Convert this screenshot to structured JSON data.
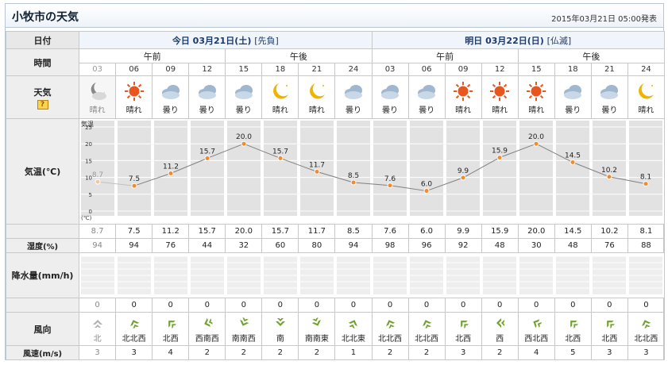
{
  "page": {
    "title": "小牧市の天気",
    "announce": "2015年03月21日 05:00発表"
  },
  "labels": {
    "date": "日付",
    "time": "時間",
    "weather": "天気",
    "help": "?",
    "temp": "気温(℃)",
    "humidity": "湿度(%)",
    "rain": "降水量(mm/h)",
    "wind_dir": "風向",
    "wind_speed": "風速(m/s)",
    "morning": "午前",
    "afternoon": "午後"
  },
  "days": [
    {
      "label": "今日 03月21日(土)",
      "rokuyo": "[先負]"
    },
    {
      "label": "明日 03月22日(日)",
      "rokuyo": "[仏滅]"
    }
  ],
  "chart_labels": {
    "axis_title": "気温",
    "unit": "(℃)",
    "ticks": [
      "25",
      "20",
      "15",
      "10",
      "5",
      "0"
    ]
  },
  "hours": [
    "03",
    "06",
    "09",
    "12",
    "15",
    "18",
    "21",
    "24",
    "03",
    "06",
    "09",
    "12",
    "15",
    "18",
    "21",
    "24"
  ],
  "weather": [
    {
      "icon": "moon-cloud-icon",
      "label": "晴れ",
      "past": true
    },
    {
      "icon": "sun-icon",
      "label": "晴れ",
      "past": false
    },
    {
      "icon": "cloud-icon",
      "label": "曇り",
      "past": false
    },
    {
      "icon": "cloud-icon",
      "label": "曇り",
      "past": false
    },
    {
      "icon": "cloud-icon",
      "label": "曇り",
      "past": false
    },
    {
      "icon": "moon-icon",
      "label": "晴れ",
      "past": false
    },
    {
      "icon": "moon-icon",
      "label": "晴れ",
      "past": false
    },
    {
      "icon": "cloud-icon",
      "label": "曇り",
      "past": false
    },
    {
      "icon": "cloud-icon",
      "label": "曇り",
      "past": false
    },
    {
      "icon": "cloud-icon",
      "label": "曇り",
      "past": false
    },
    {
      "icon": "sun-icon",
      "label": "晴れ",
      "past": false
    },
    {
      "icon": "sun-icon",
      "label": "晴れ",
      "past": false
    },
    {
      "icon": "sun-icon",
      "label": "晴れ",
      "past": false
    },
    {
      "icon": "cloud-icon",
      "label": "曇り",
      "past": false
    },
    {
      "icon": "cloud-icon",
      "label": "曇り",
      "past": false
    },
    {
      "icon": "moon-icon",
      "label": "晴れ",
      "past": false
    }
  ],
  "chart_data": {
    "type": "line",
    "x": [
      "03",
      "06",
      "09",
      "12",
      "15",
      "18",
      "21",
      "24",
      "03",
      "06",
      "09",
      "12",
      "15",
      "18",
      "21",
      "24"
    ],
    "series": [
      {
        "values": [
          8.7,
          7.5,
          11.2,
          15.7,
          20.0,
          15.7,
          11.7,
          8.5,
          7.6,
          6.0,
          9.9,
          15.9,
          20.0,
          14.5,
          10.2,
          8.1
        ]
      }
    ],
    "data_labels": [
      "8.7",
      "7.5",
      "11.2",
      "15.7",
      "20.0",
      "15.7",
      "11.7",
      "8.5",
      "7.6",
      "6.0",
      "9.9",
      "15.9",
      "20.0",
      "14.5",
      "10.2",
      "8.1"
    ],
    "ylim": [
      0,
      25
    ],
    "grid": true,
    "past_count": 1,
    "line_color": "#808080",
    "point_color": "#f08c2e"
  },
  "temps": [
    "8.7",
    "7.5",
    "11.2",
    "15.7",
    "20.0",
    "15.7",
    "11.7",
    "8.5",
    "7.6",
    "6.0",
    "9.9",
    "15.9",
    "20.0",
    "14.5",
    "10.2",
    "8.1"
  ],
  "humidity": [
    "94",
    "94",
    "76",
    "44",
    "32",
    "60",
    "80",
    "94",
    "98",
    "96",
    "92",
    "48",
    "30",
    "48",
    "76",
    "88"
  ],
  "rain": [
    "0",
    "0",
    "0",
    "0",
    "0",
    "0",
    "0",
    "0",
    "0",
    "0",
    "0",
    "0",
    "0",
    "0",
    "0",
    "0"
  ],
  "wind_dir": [
    {
      "label": "北",
      "icon": "wind-arrow-north-icon",
      "past": true
    },
    {
      "label": "北北西",
      "icon": "wind-arrow-icon",
      "past": false
    },
    {
      "label": "北西",
      "icon": "wind-arrow-icon",
      "past": false
    },
    {
      "label": "西南西",
      "icon": "wind-arrow-icon",
      "past": false
    },
    {
      "label": "南南西",
      "icon": "wind-arrow-icon",
      "past": false
    },
    {
      "label": "南",
      "icon": "wind-arrow-icon",
      "past": false
    },
    {
      "label": "南南東",
      "icon": "wind-arrow-icon",
      "past": false
    },
    {
      "label": "北北東",
      "icon": "wind-arrow-icon",
      "past": false
    },
    {
      "label": "北北西",
      "icon": "wind-arrow-icon",
      "past": false
    },
    {
      "label": "北北西",
      "icon": "wind-arrow-icon",
      "past": false
    },
    {
      "label": "北西",
      "icon": "wind-arrow-icon",
      "past": false
    },
    {
      "label": "西",
      "icon": "wind-arrow-icon",
      "past": false
    },
    {
      "label": "西北西",
      "icon": "wind-arrow-icon",
      "past": false
    },
    {
      "label": "北西",
      "icon": "wind-arrow-icon",
      "past": false
    },
    {
      "label": "北西",
      "icon": "wind-arrow-icon",
      "past": false
    },
    {
      "label": "北北西",
      "icon": "wind-arrow-icon",
      "past": false
    }
  ],
  "wind_speed": [
    "3",
    "3",
    "4",
    "2",
    "2",
    "2",
    "2",
    "1",
    "2",
    "2",
    "3",
    "2",
    "4",
    "5",
    "3",
    "3"
  ],
  "colors": {
    "accent": "#1b3a6b",
    "sun": "#e8551f",
    "moon": "#f0b400",
    "cloud": "#9fb7cf",
    "wind_arrow": "#6fa22a",
    "wind_arrow_past": "#b0b0b0"
  }
}
